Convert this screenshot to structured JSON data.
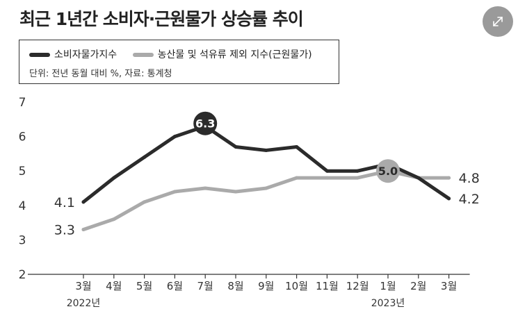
{
  "title": "최근 1년간 소비자·근원물가 상승률 추이",
  "expand_icon": "expand-icon",
  "legend": {
    "items": [
      {
        "label": "소비자물가지수",
        "color": "#2b2b2b"
      },
      {
        "label": "농산물 및 석유류 제외 지수(근원물가)",
        "color": "#aaaaaa"
      }
    ],
    "unit_note": "단위: 전년 동월 대비 %, 자료: 통계청"
  },
  "chart_data": {
    "type": "line",
    "title": "최근 1년간 소비자·근원물가 상승률 추이",
    "categories": [
      "3월",
      "4월",
      "5월",
      "6월",
      "7월",
      "8월",
      "9월",
      "10월",
      "11월",
      "12월",
      "1월",
      "2월",
      "3월"
    ],
    "year_labels": [
      {
        "index": 0,
        "label": "2022년"
      },
      {
        "index": 10,
        "label": "2023년"
      }
    ],
    "ylim": [
      2,
      7
    ],
    "yticks": [
      2,
      3,
      4,
      5,
      6,
      7
    ],
    "series": [
      {
        "name": "소비자물가지수",
        "color": "#2b2b2b",
        "values": [
          4.1,
          4.8,
          5.4,
          6.0,
          6.3,
          5.7,
          5.6,
          5.7,
          5.0,
          5.0,
          5.2,
          4.8,
          4.2
        ]
      },
      {
        "name": "농산물 및 석유류 제외 지수(근원물가)",
        "color": "#aaaaaa",
        "values": [
          3.3,
          3.6,
          4.1,
          4.4,
          4.5,
          4.4,
          4.5,
          4.8,
          4.8,
          4.8,
          5.0,
          4.8,
          4.8
        ]
      }
    ],
    "annotations": [
      {
        "series": 0,
        "index": 0,
        "label": "4.1",
        "style": "text"
      },
      {
        "series": 1,
        "index": 0,
        "label": "3.3",
        "style": "text"
      },
      {
        "series": 0,
        "index": 4,
        "label": "6.3",
        "style": "bubble-dark"
      },
      {
        "series": 1,
        "index": 10,
        "label": "5.0",
        "style": "bubble-gray"
      },
      {
        "series": 1,
        "index": 12,
        "label": "4.8",
        "style": "text"
      },
      {
        "series": 0,
        "index": 12,
        "label": "4.2",
        "style": "text"
      }
    ]
  }
}
